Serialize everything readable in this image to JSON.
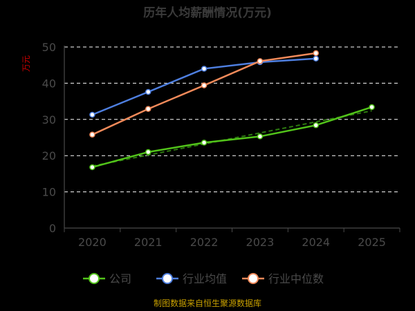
{
  "chart_data": {
    "type": "line",
    "title": "历年人均薪酬情况(万元)",
    "y_unit": "万元",
    "categories": [
      "2020",
      "2021",
      "2022",
      "2023",
      "2024",
      "2025"
    ],
    "ylim": [
      0,
      50
    ],
    "y_ticks": [
      0,
      10,
      20,
      30,
      40,
      50
    ],
    "grid": true,
    "legend_position": "bottom",
    "series": [
      {
        "name": "公司",
        "color": "#52c41a",
        "values": [
          16.8,
          21.0,
          23.6,
          25.3,
          28.4,
          33.4
        ],
        "trend_line": true
      },
      {
        "name": "行业均值",
        "color": "#4e7fe0",
        "values": [
          31.3,
          37.6,
          44.0,
          45.8,
          46.8,
          null
        ],
        "trend_line": false
      },
      {
        "name": "行业中位数",
        "color": "#f28a5a",
        "values": [
          25.8,
          32.9,
          39.4,
          46.1,
          48.3,
          null
        ],
        "trend_line": false
      }
    ]
  },
  "source_note": "制图数据来自恒生聚源数据库"
}
